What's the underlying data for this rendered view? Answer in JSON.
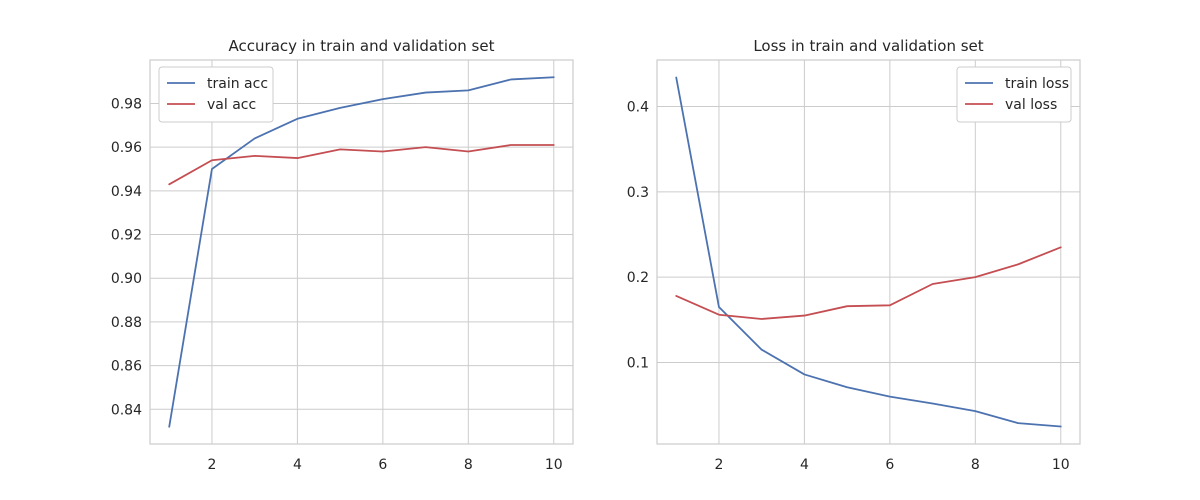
{
  "chart_data": [
    {
      "type": "line",
      "title": "Accuracy in train and validation set",
      "x": [
        1,
        2,
        3,
        4,
        5,
        6,
        7,
        8,
        9,
        10
      ],
      "series": [
        {
          "name": "train acc",
          "color": "#4c72b0",
          "values": [
            0.832,
            0.95,
            0.964,
            0.973,
            0.978,
            0.982,
            0.985,
            0.986,
            0.991,
            0.992
          ]
        },
        {
          "name": "val acc",
          "color": "#c44e52",
          "values": [
            0.943,
            0.954,
            0.956,
            0.955,
            0.959,
            0.958,
            0.96,
            0.958,
            0.961,
            0.961
          ]
        }
      ],
      "xticks": [
        2,
        4,
        6,
        8,
        10
      ],
      "xtick_labels": [
        "2",
        "4",
        "6",
        "8",
        "10"
      ],
      "yticks": [
        0.84,
        0.86,
        0.88,
        0.9,
        0.92,
        0.94,
        0.96,
        0.98
      ],
      "ytick_labels": [
        "0.84",
        "0.86",
        "0.88",
        "0.90",
        "0.92",
        "0.94",
        "0.96",
        "0.98"
      ],
      "xlim": [
        0.55,
        10.45
      ],
      "ylim": [
        0.8241,
        0.9999
      ],
      "grid": true,
      "legend_position": "top-left"
    },
    {
      "type": "line",
      "title": "Loss in train and validation set",
      "x": [
        1,
        2,
        3,
        4,
        5,
        6,
        7,
        8,
        9,
        10
      ],
      "series": [
        {
          "name": "train loss",
          "color": "#4c72b0",
          "values": [
            0.434,
            0.165,
            0.115,
            0.086,
            0.071,
            0.06,
            0.052,
            0.043,
            0.029,
            0.025
          ]
        },
        {
          "name": "val loss",
          "color": "#c44e52",
          "values": [
            0.178,
            0.156,
            0.151,
            0.155,
            0.166,
            0.167,
            0.192,
            0.2,
            0.215,
            0.235
          ]
        }
      ],
      "xticks": [
        2,
        4,
        6,
        8,
        10
      ],
      "xtick_labels": [
        "2",
        "4",
        "6",
        "8",
        "10"
      ],
      "yticks": [
        0.1,
        0.2,
        0.3,
        0.4
      ],
      "ytick_labels": [
        "0.1",
        "0.2",
        "0.3",
        "0.4"
      ],
      "xlim": [
        0.55,
        10.45
      ],
      "ylim": [
        0.0045,
        0.4545
      ],
      "grid": true,
      "legend_position": "top-right"
    }
  ]
}
